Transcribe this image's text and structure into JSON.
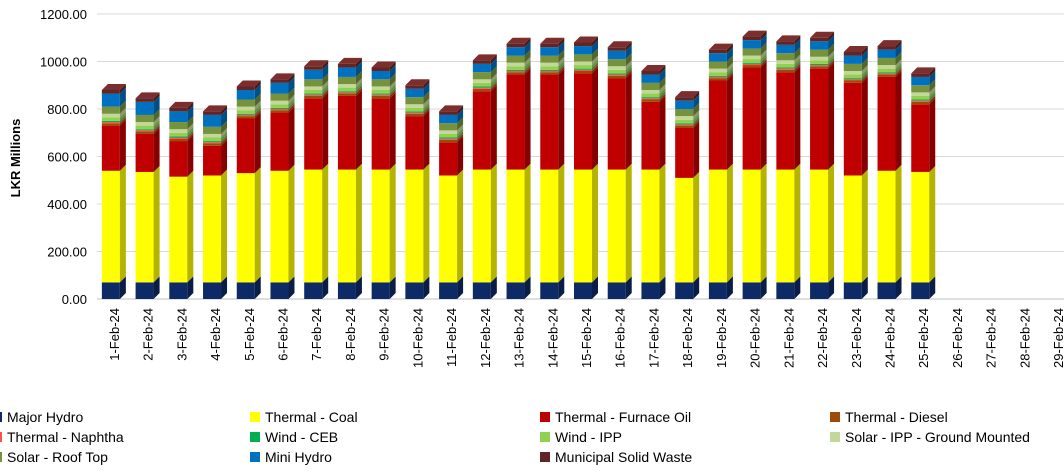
{
  "chart_data": {
    "type": "bar",
    "stacked": true,
    "ylabel": "LKR Millions",
    "ylim": [
      0,
      1200
    ],
    "yticks": [
      "0.00",
      "200.00",
      "400.00",
      "600.00",
      "800.00",
      "1000.00",
      "1200.00"
    ],
    "grid": true,
    "legend_position": "bottom",
    "categories": [
      "1-Feb-24",
      "2-Feb-24",
      "3-Feb-24",
      "4-Feb-24",
      "5-Feb-24",
      "6-Feb-24",
      "7-Feb-24",
      "8-Feb-24",
      "9-Feb-24",
      "10-Feb-24",
      "11-Feb-24",
      "12-Feb-24",
      "13-Feb-24",
      "14-Feb-24",
      "15-Feb-24",
      "16-Feb-24",
      "17-Feb-24",
      "18-Feb-24",
      "19-Feb-24",
      "20-Feb-24",
      "21-Feb-24",
      "22-Feb-24",
      "23-Feb-24",
      "24-Feb-24",
      "25-Feb-24",
      "26-Feb-24",
      "27-Feb-24",
      "28-Feb-24",
      "29-Feb-24"
    ],
    "series": [
      {
        "name": "Major Hydro",
        "color": "#0d2a66",
        "values": [
          70,
          70,
          70,
          70,
          70,
          70,
          70,
          70,
          70,
          70,
          70,
          70,
          70,
          70,
          70,
          70,
          70,
          70,
          70,
          70,
          70,
          70,
          70,
          70,
          70,
          null,
          null,
          null,
          null
        ]
      },
      {
        "name": "Thermal - Coal",
        "color": "#ffff00",
        "values": [
          470,
          465,
          445,
          450,
          460,
          470,
          475,
          475,
          475,
          475,
          450,
          475,
          475,
          475,
          475,
          475,
          475,
          440,
          475,
          475,
          475,
          475,
          450,
          470,
          465,
          null,
          null,
          null,
          null
        ]
      },
      {
        "name": "Thermal - Furnace Oil",
        "color": "#c00000",
        "values": [
          190,
          160,
          150,
          125,
          230,
          245,
          300,
          310,
          300,
          225,
          140,
          330,
          400,
          400,
          405,
          385,
          285,
          210,
          375,
          430,
          410,
          425,
          390,
          395,
          285,
          null,
          null,
          null,
          null
        ]
      },
      {
        "name": "Thermal - Diesel",
        "color": "#9c4a06",
        "values": [
          10,
          10,
          10,
          10,
          10,
          10,
          10,
          10,
          10,
          10,
          10,
          10,
          10,
          10,
          10,
          10,
          10,
          10,
          10,
          10,
          10,
          10,
          10,
          10,
          10,
          null,
          null,
          null,
          null
        ]
      },
      {
        "name": "Thermal - Naphtha",
        "color": "#ff5050",
        "values": [
          5,
          5,
          5,
          5,
          5,
          5,
          5,
          5,
          5,
          5,
          5,
          5,
          5,
          5,
          5,
          5,
          5,
          5,
          5,
          5,
          5,
          5,
          5,
          5,
          5,
          null,
          null,
          null,
          null
        ]
      },
      {
        "name": "Wind - CEB",
        "color": "#00b050",
        "values": [
          5,
          5,
          5,
          5,
          5,
          5,
          5,
          5,
          5,
          5,
          5,
          5,
          5,
          5,
          5,
          5,
          5,
          5,
          5,
          5,
          5,
          5,
          5,
          5,
          5,
          null,
          null,
          null,
          null
        ]
      },
      {
        "name": "Wind - IPP",
        "color": "#92d050",
        "values": [
          15,
          15,
          15,
          15,
          15,
          15,
          15,
          15,
          15,
          15,
          15,
          15,
          15,
          15,
          15,
          15,
          15,
          15,
          15,
          15,
          15,
          15,
          15,
          15,
          15,
          null,
          null,
          null,
          null
        ]
      },
      {
        "name": "Solar - IPP - Ground Mounted",
        "color": "#c4d79b",
        "values": [
          15,
          15,
          15,
          15,
          15,
          15,
          15,
          15,
          15,
          15,
          15,
          15,
          15,
          15,
          15,
          15,
          15,
          15,
          15,
          15,
          15,
          15,
          15,
          15,
          15,
          null,
          null,
          null,
          null
        ]
      },
      {
        "name": "Solar - Roof Top",
        "color": "#76923c",
        "values": [
          30,
          30,
          30,
          30,
          30,
          30,
          30,
          30,
          30,
          30,
          30,
          30,
          30,
          30,
          30,
          30,
          30,
          30,
          30,
          30,
          30,
          30,
          30,
          30,
          30,
          null,
          null,
          null,
          null
        ]
      },
      {
        "name": "Mini Hydro",
        "color": "#0070c0",
        "values": [
          55,
          55,
          45,
          50,
          40,
          45,
          40,
          40,
          35,
          35,
          35,
          35,
          35,
          35,
          35,
          35,
          35,
          35,
          35,
          35,
          35,
          35,
          35,
          35,
          35,
          null,
          null,
          null,
          null
        ]
      },
      {
        "name": "Municipal Solid Waste",
        "color": "#632523",
        "values": [
          15,
          15,
          15,
          15,
          15,
          15,
          15,
          15,
          15,
          15,
          15,
          15,
          15,
          15,
          15,
          15,
          15,
          15,
          15,
          15,
          15,
          15,
          15,
          15,
          15,
          null,
          null,
          null,
          null
        ]
      }
    ]
  }
}
